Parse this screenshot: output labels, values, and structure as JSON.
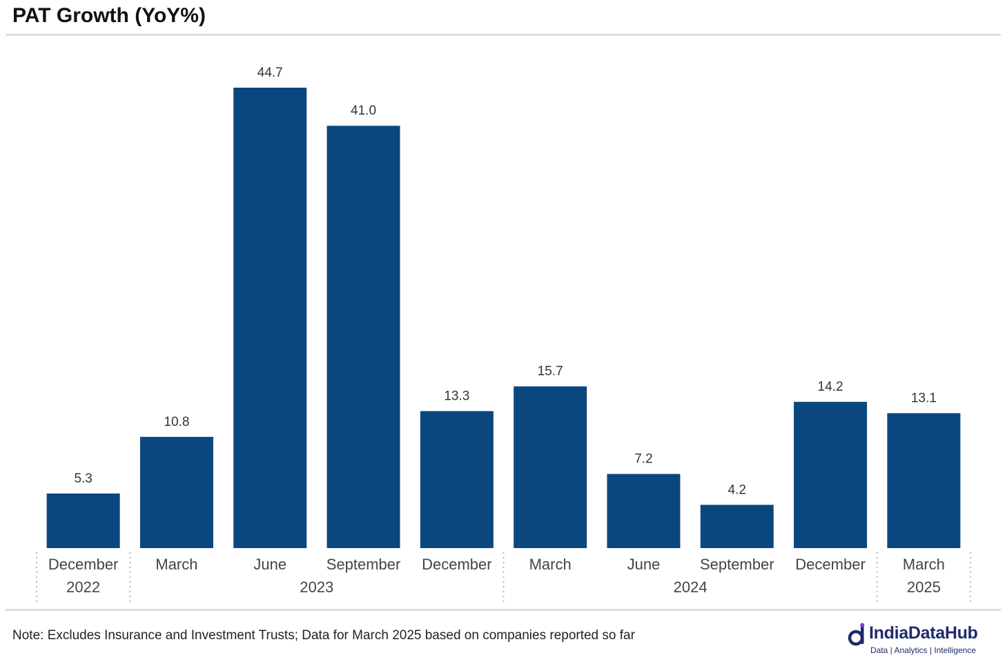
{
  "page": {
    "title": "PAT Growth (YoY%)",
    "footnote": "Note: Excludes Insurance and Investment Trusts; Data for March 2025 based on companies reported so far"
  },
  "logo": {
    "name": "IndiaDataHub",
    "tagline": "Data | Analytics | Intelligence"
  },
  "colors": {
    "bar": "#0b477f",
    "logo": "#1f2a6b",
    "logo_accent": "#7a3fd6"
  },
  "chart_data": {
    "type": "bar",
    "title": "PAT Growth (YoY%)",
    "xlabel": "",
    "ylabel": "",
    "categories": [
      "December",
      "March",
      "June",
      "September",
      "December",
      "March",
      "June",
      "September",
      "December",
      "March"
    ],
    "year_groups": [
      {
        "label": "2022",
        "start": 0,
        "end": 0
      },
      {
        "label": "2023",
        "start": 1,
        "end": 4
      },
      {
        "label": "2024",
        "start": 5,
        "end": 8
      },
      {
        "label": "2025",
        "start": 9,
        "end": 9
      }
    ],
    "values": [
      5.3,
      10.8,
      44.7,
      41.0,
      13.3,
      15.7,
      7.2,
      4.2,
      14.2,
      13.1
    ],
    "value_labels": [
      "5.3",
      "10.8",
      "44.7",
      "41.0",
      "13.3",
      "15.7",
      "7.2",
      "4.2",
      "14.2",
      "13.1"
    ],
    "ylim": [
      0,
      44.7
    ],
    "grid": false,
    "legend": "none"
  }
}
